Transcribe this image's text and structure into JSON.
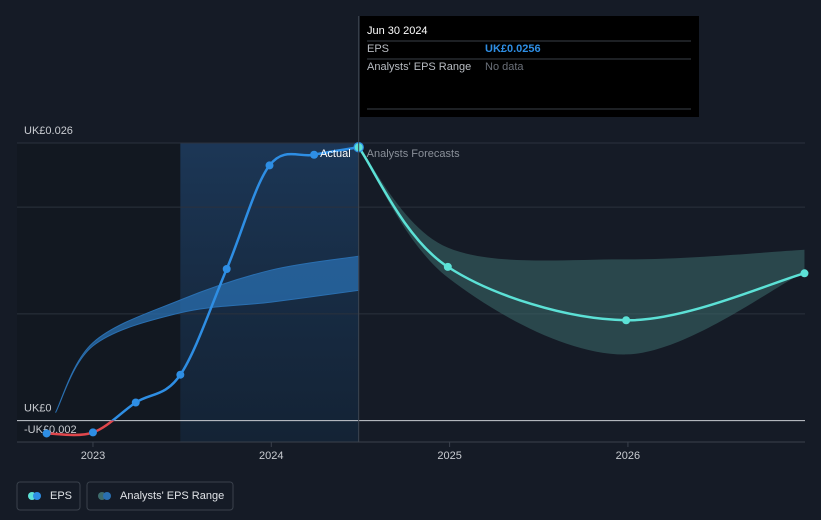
{
  "chart_data": {
    "type": "line",
    "xlim": [
      2022.574,
      2026.993
    ],
    "xticks": [
      2023,
      2024,
      2025,
      2026
    ],
    "ylim": [
      -0.002,
      0.026
    ],
    "yticks": [
      {
        "value": -0.002,
        "label": "-UK£0.002"
      },
      {
        "value": 0,
        "label": "UK£0"
      },
      {
        "value": 0.01,
        "label": null
      },
      {
        "value": 0.02,
        "label": null
      },
      {
        "value": 0.026,
        "label": "UK£0.026"
      }
    ],
    "grid": true,
    "highlight_xlim": [
      2023.49,
      2024.49
    ],
    "annotations": {
      "actual": "Actual",
      "forecast": "Analysts Forecasts"
    },
    "series": [
      {
        "name": "EPS",
        "color": "#2e8ee4",
        "negative_color": "#e0474c",
        "x": [
          2022.74,
          2023.0,
          2023.24,
          2023.49,
          2023.75,
          2023.99,
          2024.24,
          2024.49
        ],
        "values": [
          -0.0012,
          -0.0011,
          0.0017,
          0.0043,
          0.0142,
          0.0239,
          0.0249,
          0.0256
        ]
      },
      {
        "color": "#5ce1d6",
        "x": [
          2024.49,
          2024.99,
          2025.99,
          2026.99
        ],
        "values": [
          0.0256,
          0.0144,
          0.0094,
          0.0138
        ]
      }
    ],
    "ranges": [
      {
        "name": "Analysts' EPS Range",
        "color": "#3d6b6c",
        "x": [
          2024.49,
          2024.99,
          2025.99,
          2026.99
        ],
        "high": [
          0.0256,
          0.0162,
          0.0151,
          0.016
        ],
        "low": [
          0.0256,
          0.0134,
          0.0062,
          0.0139
        ]
      },
      {
        "color": "#2a6fb0",
        "x": [
          2022.79,
          2023.0,
          2023.49,
          2024.0,
          2024.49
        ],
        "high": [
          0.00075,
          0.0073,
          0.0113,
          0.0141,
          0.0154
        ],
        "low": [
          0.00075,
          0.007,
          0.0101,
          0.0111,
          0.0122
        ]
      }
    ],
    "tooltip": {
      "date": "Jun 30 2024",
      "rows": [
        {
          "label": "EPS",
          "value": "UK£0.0256"
        },
        {
          "label": "Analysts' EPS Range",
          "value": "No data"
        }
      ]
    }
  }
}
